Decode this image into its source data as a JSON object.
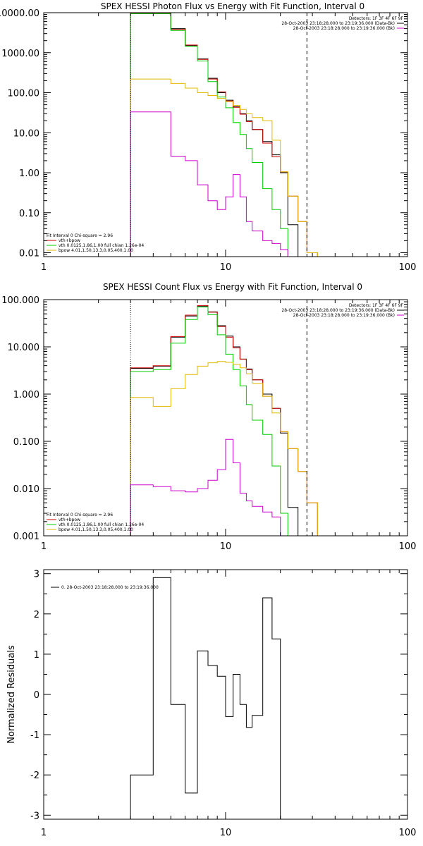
{
  "colors": {
    "total": "#000000",
    "fit": "#cc0000",
    "vth": "#00cc00",
    "bpow": "#e0b800",
    "background": "#cc00cc",
    "frame": "#000000"
  },
  "chart_data": [
    {
      "type": "line",
      "title": "SPEX HESSI Photon Flux vs Energy with Fit Function, Interval 0",
      "xscale": "log",
      "yscale": "log",
      "xlim": [
        1,
        100
      ],
      "ylim": [
        0.008,
        10000
      ],
      "xticks": [
        {
          "v": 1,
          "label": "1"
        },
        {
          "v": 10,
          "label": "10"
        },
        {
          "v": 100,
          "label": "100"
        }
      ],
      "yticks": [
        {
          "v": 0.01,
          "label": "0.01"
        },
        {
          "v": 0.1,
          "label": "0.10"
        },
        {
          "v": 1,
          "label": "1.00"
        },
        {
          "v": 10,
          "label": "10.00"
        },
        {
          "v": 100,
          "label": "100.00"
        },
        {
          "v": 1000,
          "label": "1000.00"
        },
        {
          "v": 10000,
          "label": "10000.00"
        }
      ],
      "info_lines": [
        "Detectors: 1F 3F 4F 6F 9F",
        "28-Oct-2003 23:18:28.000 to 23:19:36.000 (Data-Bk)",
        "28-Oct-2003 23:18:28.000 to 23:19:36.000 (Bk)"
      ],
      "fit_text": "Fit Interval 0   Chi-square = 2.96",
      "legend": [
        {
          "series": "fit",
          "label": "vth+bpow"
        },
        {
          "series": "vth",
          "label": "vth 0.0125,1.86,1.00  full chian 1.26e-04"
        },
        {
          "series": "bpow",
          "label": "bpow 4.01,1.50,13.3,0.05,400,1.00"
        }
      ],
      "vlines": [
        {
          "x": 3,
          "style": "dotted"
        },
        {
          "x": 28,
          "style": "dashed"
        }
      ],
      "edges": [
        3,
        4,
        5,
        6,
        7,
        8,
        9,
        10,
        11,
        12,
        13,
        14,
        16,
        18,
        20,
        22,
        25,
        28,
        32
      ],
      "series": [
        {
          "key": "total",
          "values": [
            9500,
            9500,
            4000,
            1500,
            700,
            230,
            100,
            65,
            45,
            30,
            20,
            12,
            6,
            2.8,
            1,
            0.05,
            null,
            null
          ]
        },
        {
          "key": "fit",
          "values": [
            9600,
            9600,
            3800,
            1550,
            680,
            220,
            105,
            62,
            43,
            29,
            19,
            12,
            5.5,
            2.5,
            1.05,
            0.26,
            0.06,
            0.01
          ]
        },
        {
          "key": "vth",
          "values": [
            9400,
            9400,
            3600,
            1450,
            620,
            190,
            78,
            42,
            18,
            9,
            4,
            1.8,
            0.4,
            0.12,
            0.04,
            0.007,
            null,
            null
          ]
        },
        {
          "key": "bpow",
          "values": [
            220,
            220,
            170,
            130,
            100,
            85,
            72,
            60,
            48,
            38,
            30,
            24,
            20,
            6.5,
            1.05,
            0.26,
            0.06,
            0.01
          ]
        },
        {
          "key": "background",
          "values": [
            33,
            33,
            2.6,
            2,
            0.5,
            0.2,
            0.12,
            0.25,
            0.9,
            0.25,
            0.06,
            0.035,
            0.02,
            0.017,
            0.012,
            null,
            null,
            null
          ]
        }
      ]
    },
    {
      "type": "line",
      "title": "SPEX HESSI Count Flux vs Energy with Fit Function, Interval 0",
      "xscale": "log",
      "yscale": "log",
      "xlim": [
        1,
        100
      ],
      "ylim": [
        0.001,
        100
      ],
      "xticks": [
        {
          "v": 1,
          "label": "1"
        },
        {
          "v": 10,
          "label": "10"
        },
        {
          "v": 100,
          "label": "100"
        }
      ],
      "yticks": [
        {
          "v": 0.001,
          "label": "0.001"
        },
        {
          "v": 0.01,
          "label": "0.010"
        },
        {
          "v": 0.1,
          "label": "0.100"
        },
        {
          "v": 1,
          "label": "1.000"
        },
        {
          "v": 10,
          "label": "10.000"
        },
        {
          "v": 100,
          "label": "100.000"
        }
      ],
      "info_lines": [
        "Detectors: 1F 3F 4F 6F 9F",
        "28-Oct-2003 23:18:28.000 to 23:19:36.000 (Data-Bk)",
        "28-Oct-2003 23:18:28.000 to 23:19:36.000 (Bk)"
      ],
      "fit_text": "Fit Interval 0   Chi-square = 2.96",
      "legend": [
        {
          "series": "fit",
          "label": "vth+bpow"
        },
        {
          "series": "vth",
          "label": "vth 0.0125,1.86,1.00  full chian 1.26e-04"
        },
        {
          "series": "bpow",
          "label": "bpow 4.01,1.50,13.3,0.05,400,1.00"
        }
      ],
      "vlines": [
        {
          "x": 3,
          "style": "dotted"
        },
        {
          "x": 28,
          "style": "dashed"
        }
      ],
      "edges": [
        3,
        4,
        5,
        6,
        7,
        8,
        9,
        10,
        11,
        12,
        13,
        14,
        16,
        18,
        20,
        22,
        25,
        28,
        32,
        36
      ],
      "series": [
        {
          "key": "total",
          "values": [
            3.5,
            3.9,
            16,
            45,
            73,
            55,
            28,
            17,
            10,
            5.5,
            3.4,
            2,
            1,
            0.5,
            0.15,
            0.004,
            null,
            null,
            null
          ]
        },
        {
          "key": "fit",
          "values": [
            3.6,
            4,
            16.5,
            47,
            75,
            54,
            27,
            16,
            9.5,
            5.5,
            3.3,
            2,
            0.9,
            0.5,
            0.16,
            0.07,
            0.023,
            0.005,
            0.001
          ]
        },
        {
          "key": "vth",
          "values": [
            3,
            3.3,
            12,
            38,
            70,
            48,
            18,
            7,
            3.3,
            1.5,
            0.6,
            0.28,
            0.14,
            0.03,
            0.003,
            null,
            null,
            null,
            null
          ]
        },
        {
          "key": "bpow",
          "values": [
            0.85,
            0.55,
            1.3,
            2.6,
            3.9,
            4.6,
            4.9,
            4.7,
            4.3,
            3.6,
            2.7,
            1.7,
            0.9,
            0.4,
            0.16,
            0.07,
            0.023,
            0.005,
            0.001
          ]
        },
        {
          "key": "background",
          "values": [
            0.012,
            0.011,
            0.009,
            0.0085,
            0.01,
            0.015,
            0.025,
            0.11,
            0.035,
            0.008,
            0.0055,
            0.0042,
            0.0032,
            0.0025,
            null,
            null,
            null,
            null,
            null
          ]
        }
      ]
    },
    {
      "type": "line",
      "title": "",
      "ylabel": "Normalized Residuals",
      "xscale": "log",
      "yscale": "linear",
      "xlim": [
        1,
        100
      ],
      "ylim": [
        -3.1,
        3.1
      ],
      "xticks": [
        {
          "v": 1,
          "label": "1"
        },
        {
          "v": 10,
          "label": "10"
        },
        {
          "v": 100,
          "label": "100"
        }
      ],
      "yticks": [
        {
          "v": -3,
          "label": "-3"
        },
        {
          "v": -2,
          "label": "-2"
        },
        {
          "v": -1,
          "label": "-1"
        },
        {
          "v": 0,
          "label": "0"
        },
        {
          "v": 1,
          "label": "1"
        },
        {
          "v": 2,
          "label": "2"
        },
        {
          "v": 3,
          "label": "3"
        }
      ],
      "legend": [
        {
          "series": "residuals",
          "label": "0. 28-Oct-2003 23:18:28.000 to 23:19:36.000"
        }
      ],
      "edges": [
        3,
        4,
        5,
        6,
        7,
        8,
        9,
        10,
        11,
        12,
        13,
        14,
        16,
        18,
        20
      ],
      "series": [
        {
          "key": "residuals",
          "values": [
            -2,
            2.9,
            -0.25,
            -2.45,
            1.08,
            0.72,
            0.45,
            -0.55,
            0.5,
            -0.25,
            -0.82,
            -0.52,
            2.4,
            1.38
          ]
        }
      ],
      "drop_to_min": true
    }
  ]
}
